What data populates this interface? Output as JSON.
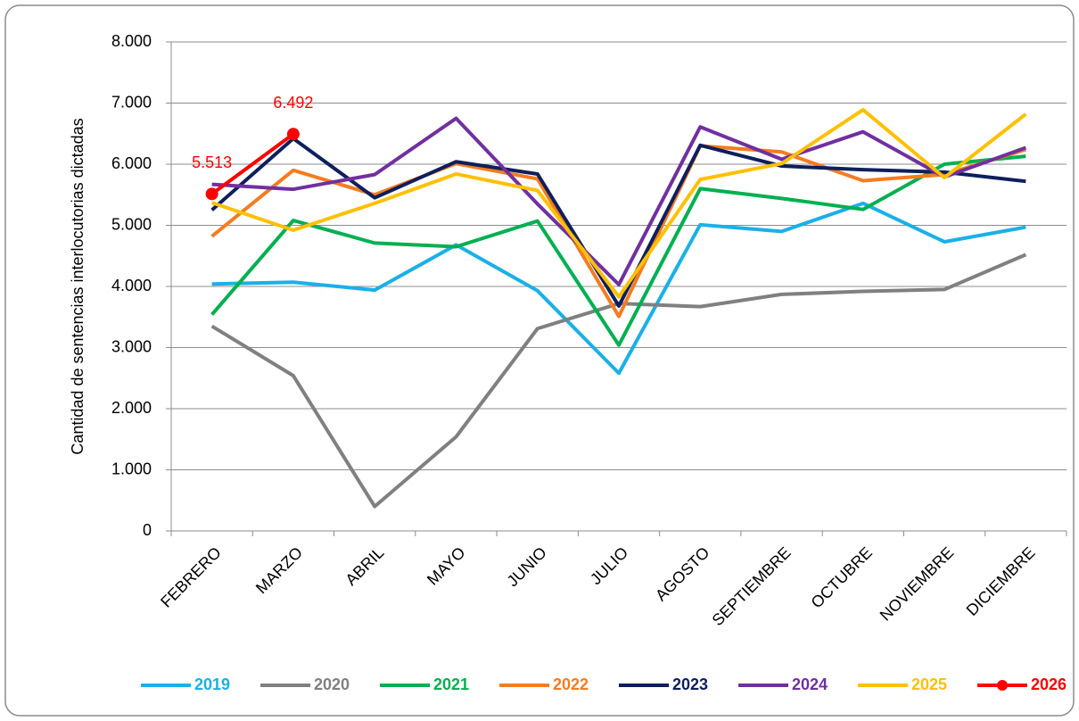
{
  "chart_data": {
    "type": "line",
    "y_label": "Cantidad de sentencias interlocutorias dictadas",
    "categories": [
      "FEBRERO",
      "MARZO",
      "ABRIL",
      "MAYO",
      "JUNIO",
      "JULIO",
      "AGOSTO",
      "SEPTIEMBRE",
      "OCTUBRE",
      "NOVIEMBRE",
      "DICIEMBRE"
    ],
    "ylim": [
      0,
      8000
    ],
    "yticks": [
      0,
      {
        "value": 1000,
        "label": "1.000"
      },
      {
        "value": 2000,
        "label": "2.000"
      },
      {
        "value": 3000,
        "label": "3.000"
      },
      {
        "value": 4000,
        "label": "4.000"
      },
      {
        "value": 5000,
        "label": "5.000"
      },
      {
        "value": 6000,
        "label": "6.000"
      },
      {
        "value": 7000,
        "label": "7.000"
      },
      {
        "value": 8000,
        "label": "8.000"
      }
    ],
    "grid": true,
    "legend": "bottom",
    "series": [
      {
        "name": "2019",
        "color": "#1ab0e8",
        "values": [
          4040,
          4070,
          3940,
          4680,
          3930,
          2580,
          5010,
          4900,
          5360,
          4730,
          4970
        ]
      },
      {
        "name": "2020",
        "color": "#808080",
        "values": [
          3350,
          2540,
          400,
          1540,
          3310,
          3720,
          3670,
          3870,
          3920,
          3950,
          4520
        ]
      },
      {
        "name": "2021",
        "color": "#00b050",
        "values": [
          3540,
          5080,
          4710,
          4650,
          5070,
          3040,
          5600,
          5440,
          5260,
          6000,
          6130
        ]
      },
      {
        "name": "2022",
        "color": "#f47c20",
        "values": [
          4820,
          5900,
          5500,
          6010,
          5760,
          3510,
          6300,
          6200,
          5730,
          5830,
          6240
        ]
      },
      {
        "name": "2023",
        "color": "#0d1f5c",
        "values": [
          5250,
          6420,
          5450,
          6040,
          5840,
          3680,
          6310,
          5970,
          5910,
          5870,
          5720
        ]
      },
      {
        "name": "2024",
        "color": "#7030a0",
        "values": [
          5670,
          5590,
          5830,
          6750,
          5350,
          4030,
          6610,
          6080,
          6530,
          5790,
          6270
        ]
      },
      {
        "name": "2025",
        "color": "#ffc000",
        "values": [
          5370,
          4920,
          5360,
          5840,
          5570,
          3830,
          5750,
          6010,
          6890,
          5780,
          6820
        ]
      },
      {
        "name": "2026",
        "color": "#ff0000",
        "marker": true,
        "values": [
          5513,
          6492,
          null,
          null,
          null,
          null,
          null,
          null,
          null,
          null,
          null
        ],
        "value_labels": [
          "5.513",
          "6.492",
          null,
          null,
          null,
          null,
          null,
          null,
          null,
          null,
          null
        ]
      }
    ]
  }
}
